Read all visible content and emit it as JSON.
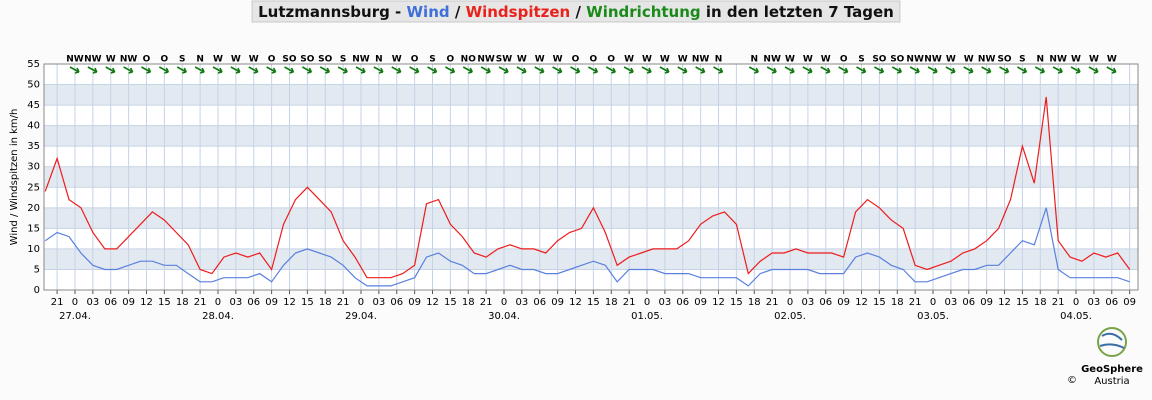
{
  "chart_data": {
    "type": "line",
    "title_parts": [
      {
        "text": "Lutzmannsburg - ",
        "color": "#111111"
      },
      {
        "text": "Wind",
        "color": "#3f6fd8"
      },
      {
        "text": " / ",
        "color": "#111111"
      },
      {
        "text": "Windspitzen",
        "color": "#e8221c"
      },
      {
        "text": " / ",
        "color": "#111111"
      },
      {
        "text": "Windrichtung",
        "color": "#1a8a1a"
      },
      {
        "text": " in den letzten 7 Tagen",
        "color": "#111111"
      }
    ],
    "y_label": "Wind / Windspitzen in km/h",
    "ylim": [
      0,
      55
    ],
    "yticks": [
      0,
      5,
      10,
      15,
      20,
      25,
      30,
      35,
      40,
      45,
      50,
      55
    ],
    "xlim": [
      -5.2,
      178.4
    ],
    "xticks": [
      {
        "value": -3,
        "label": "21"
      },
      0,
      {
        "value": 3,
        "label": "03"
      },
      {
        "value": 6,
        "label": "06"
      },
      {
        "value": 9,
        "label": "09"
      },
      12,
      15,
      18,
      21,
      {
        "value": 24,
        "label": "0"
      },
      {
        "value": 27,
        "label": "03"
      },
      {
        "value": 30,
        "label": "06"
      },
      {
        "value": 33,
        "label": "09"
      },
      {
        "value": 36,
        "label": "12"
      },
      {
        "value": 39,
        "label": "15"
      },
      {
        "value": 42,
        "label": "18"
      },
      {
        "value": 45,
        "label": "21"
      },
      {
        "value": 48,
        "label": "0"
      },
      {
        "value": 51,
        "label": "03"
      },
      {
        "value": 54,
        "label": "06"
      },
      {
        "value": 57,
        "label": "09"
      },
      {
        "value": 60,
        "label": "12"
      },
      {
        "value": 63,
        "label": "15"
      },
      {
        "value": 66,
        "label": "18"
      },
      {
        "value": 69,
        "label": "21"
      },
      {
        "value": 72,
        "label": "0"
      },
      {
        "value": 75,
        "label": "03"
      },
      {
        "value": 78,
        "label": "06"
      },
      {
        "value": 81,
        "label": "09"
      },
      {
        "value": 84,
        "label": "12"
      },
      {
        "value": 87,
        "label": "15"
      },
      {
        "value": 90,
        "label": "18"
      },
      {
        "value": 93,
        "label": "21"
      },
      {
        "value": 96,
        "label": "0"
      },
      {
        "value": 99,
        "label": "03"
      },
      {
        "value": 102,
        "label": "06"
      },
      {
        "value": 105,
        "label": "09"
      },
      {
        "value": 108,
        "label": "12"
      },
      {
        "value": 111,
        "label": "15"
      },
      {
        "value": 114,
        "label": "18"
      },
      {
        "value": 117,
        "label": "21"
      },
      {
        "value": 120,
        "label": "0"
      },
      {
        "value": 123,
        "label": "03"
      },
      {
        "value": 126,
        "label": "06"
      },
      {
        "value": 129,
        "label": "09"
      },
      {
        "value": 132,
        "label": "12"
      },
      {
        "value": 135,
        "label": "15"
      },
      {
        "value": 138,
        "label": "18"
      },
      {
        "value": 141,
        "label": "21"
      },
      {
        "value": 144,
        "label": "0"
      },
      {
        "value": 147,
        "label": "03"
      },
      {
        "value": 150,
        "label": "06"
      },
      {
        "value": 153,
        "label": "09"
      },
      {
        "value": 156,
        "label": "12"
      },
      {
        "value": 159,
        "label": "15"
      },
      {
        "value": 162,
        "label": "18"
      },
      {
        "value": 165,
        "label": "21"
      },
      {
        "value": 168,
        "label": "0"
      },
      {
        "value": 171,
        "label": "03"
      },
      {
        "value": 174,
        "label": "06"
      },
      {
        "value": 177,
        "label": "09"
      }
    ],
    "date_labels": [
      {
        "value": 0,
        "label": "27.04."
      },
      {
        "value": 24,
        "label": "28.04."
      },
      {
        "value": 48,
        "label": "29.04."
      },
      {
        "value": 72,
        "label": "30.04."
      },
      {
        "value": 96,
        "label": "01.05."
      },
      {
        "value": 120,
        "label": "02.05."
      },
      {
        "value": 144,
        "label": "03.05."
      },
      {
        "value": 168,
        "label": "04.05."
      }
    ],
    "grid": true,
    "x": [
      -5,
      -3,
      -1,
      1,
      3,
      5,
      7,
      9,
      11,
      13,
      15,
      17,
      19,
      21,
      23,
      25,
      27,
      29,
      31,
      33,
      35,
      37,
      39,
      41,
      43,
      45,
      47,
      49,
      51,
      53,
      55,
      57,
      59,
      61,
      63,
      65,
      67,
      69,
      71,
      73,
      75,
      77,
      79,
      81,
      83,
      85,
      87,
      89,
      91,
      93,
      95,
      97,
      99,
      101,
      103,
      105,
      107,
      109,
      111,
      113,
      115,
      117,
      119,
      121,
      123,
      125,
      127,
      129,
      131,
      133,
      135,
      137,
      139,
      141,
      143,
      145,
      147,
      149,
      151,
      153,
      155,
      157,
      159,
      161,
      163,
      165,
      167,
      169,
      171,
      173,
      175,
      177
    ],
    "series": [
      {
        "name": "Windspitzen",
        "color": "#ee1c1c",
        "values": [
          24,
          32,
          22,
          20,
          14,
          10,
          10,
          13,
          16,
          19,
          17,
          14,
          11,
          5,
          4,
          8,
          9,
          8,
          9,
          5,
          16,
          22,
          25,
          22,
          19,
          12,
          8,
          3,
          3,
          3,
          4,
          6,
          21,
          22,
          16,
          13,
          9,
          8,
          10,
          11,
          10,
          10,
          9,
          12,
          14,
          15,
          20,
          14,
          6,
          8,
          9,
          10,
          10,
          10,
          12,
          16,
          18,
          19,
          16,
          4,
          7,
          9,
          9,
          10,
          9,
          9,
          9,
          8,
          19,
          22,
          20,
          17,
          15,
          6,
          5,
          6,
          7,
          9,
          10,
          12,
          15,
          22,
          35,
          26,
          47,
          12,
          8,
          7,
          9,
          8,
          9,
          5
        ]
      },
      {
        "name": "Wind",
        "color": "#5a80e0",
        "values": [
          12,
          14,
          13,
          9,
          6,
          5,
          5,
          6,
          7,
          7,
          6,
          6,
          4,
          2,
          2,
          3,
          3,
          3,
          4,
          2,
          6,
          9,
          10,
          9,
          8,
          6,
          3,
          1,
          1,
          1,
          2,
          3,
          8,
          9,
          7,
          6,
          4,
          4,
          5,
          6,
          5,
          5,
          4,
          4,
          5,
          6,
          7,
          6,
          2,
          5,
          5,
          5,
          4,
          4,
          4,
          3,
          3,
          3,
          3,
          1,
          4,
          5,
          5,
          5,
          5,
          4,
          4,
          4,
          8,
          9,
          8,
          6,
          5,
          2,
          2,
          3,
          4,
          5,
          5,
          6,
          6,
          9,
          12,
          11,
          20,
          5,
          3,
          3,
          3,
          3,
          3,
          2
        ]
      }
    ],
    "directions": {
      "color": "#117a11",
      "x": [
        0,
        3,
        6,
        9,
        12,
        15,
        18,
        21,
        24,
        27,
        30,
        33,
        36,
        39,
        42,
        45,
        48,
        51,
        54,
        57,
        60,
        63,
        66,
        69,
        72,
        75,
        78,
        81,
        84,
        87,
        90,
        93,
        96,
        99,
        102,
        105,
        108,
        114,
        117,
        120,
        123,
        126,
        129,
        132,
        135,
        138,
        141,
        144,
        147,
        150,
        153,
        156,
        159,
        162,
        165,
        168,
        171,
        174
      ],
      "labels": [
        "NW",
        "NW",
        "W",
        "NW",
        "O",
        "O",
        "S",
        "N",
        "W",
        "W",
        "W",
        "O",
        "SO",
        "SO",
        "SO",
        "S",
        "NW",
        "N",
        "W",
        "O",
        "S",
        "O",
        "NO",
        "NW",
        "SW",
        "W",
        "W",
        "W",
        "O",
        "O",
        "O",
        "W",
        "W",
        "W",
        "W",
        "NW",
        "N",
        "N",
        "NW",
        "W",
        "W",
        "W",
        "O",
        "S",
        "SO",
        "SO",
        "NW",
        "NW",
        "W",
        "W",
        "NW",
        "SO",
        "S",
        "N",
        "NW",
        "W",
        "W",
        "W"
      ]
    },
    "footer": {
      "logo_name": "GeoSphere",
      "logo_sub": "Austria",
      "copyright": "©"
    }
  }
}
